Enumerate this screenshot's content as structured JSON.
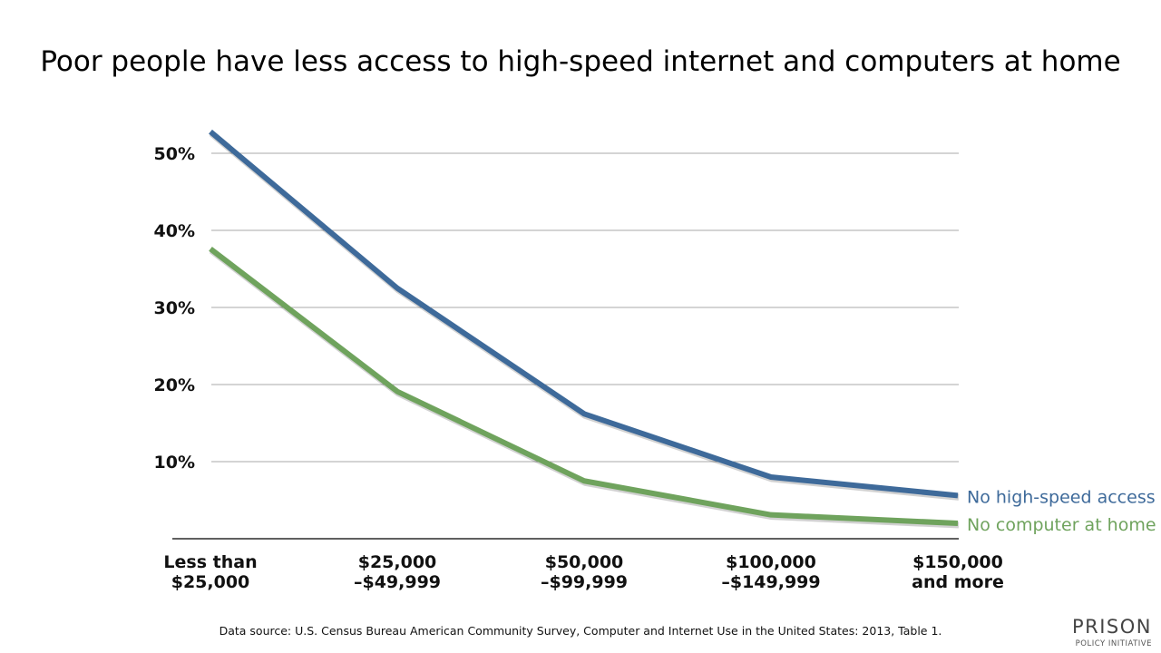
{
  "chart_data": {
    "type": "line",
    "title": "Poor people have less access to high-speed internet and computers at home",
    "categories": [
      [
        "Less than",
        "$25,000"
      ],
      [
        "$25,000",
        "–$49,999"
      ],
      [
        "$50,000",
        "–$99,999"
      ],
      [
        "$100,000",
        "–$149,999"
      ],
      [
        "$150,000",
        "and more"
      ]
    ],
    "yticks": [
      "10%",
      "20%",
      "30%",
      "40%",
      "50%"
    ],
    "ylim": [
      0,
      55
    ],
    "grid": true,
    "legend": "direct labels at line ends (right)",
    "series": [
      {
        "name": "No high-speed access",
        "color": "#3e6a9a",
        "values": [
          52.8,
          32.5,
          16.2,
          8.0,
          5.6
        ]
      },
      {
        "name": "No computer at home",
        "color": "#6fa35d",
        "values": [
          37.6,
          19.1,
          7.5,
          3.1,
          2.0
        ]
      }
    ]
  },
  "source": "Data source: U.S. Census Bureau American Community Survey, Computer and Internet Use in the United States: 2013, Table 1.",
  "logo": {
    "line1": "PRISON",
    "line2": "POLICY INITIATIVE"
  }
}
